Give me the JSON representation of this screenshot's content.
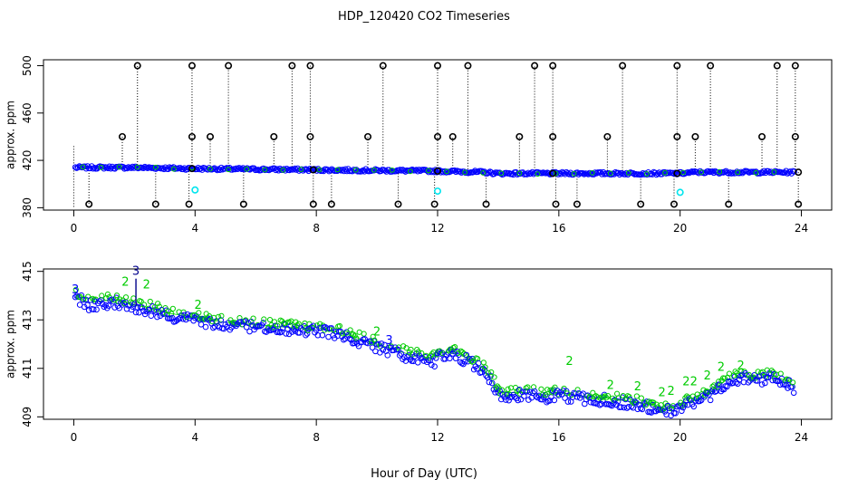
{
  "title": "HDP_120420  CO2 Timeseries",
  "xlabel": "Hour of Day (UTC)",
  "colors": {
    "black": "#000000",
    "blue": "#0000ff",
    "green": "#00cc00",
    "cyan": "#00e5ee",
    "navy": "#00008b"
  },
  "chart_data": [
    {
      "type": "scatter",
      "name": "top-panel",
      "ylabel": "approx. ppm",
      "xlim": [
        -1,
        25
      ],
      "ylim": [
        378,
        505
      ],
      "xticks": [
        0,
        4,
        8,
        12,
        16,
        20,
        24
      ],
      "yticks": [
        380,
        420,
        460,
        500
      ],
      "baseline": [
        [
          0.0,
          414
        ],
        [
          2.0,
          414
        ],
        [
          4.0,
          413
        ],
        [
          8.0,
          412
        ],
        [
          12.0,
          411
        ],
        [
          13.5,
          410
        ],
        [
          14.0,
          409
        ],
        [
          20.0,
          409
        ],
        [
          20.5,
          410
        ],
        [
          23.8,
          410
        ]
      ],
      "outliers_high_500": [
        2.1,
        3.9,
        5.1,
        7.2,
        7.8,
        10.2,
        12.0,
        13.0,
        15.2,
        15.8,
        18.1,
        19.9,
        21.0,
        23.2,
        23.8
      ],
      "outliers_high_440": [
        1.6,
        3.9,
        4.5,
        6.6,
        7.8,
        9.7,
        12.0,
        12.5,
        14.7,
        15.8,
        17.6,
        19.9,
        20.5,
        22.7,
        23.8
      ],
      "outliers_low_383": [
        0.5,
        2.7,
        3.8,
        5.6,
        7.9,
        8.5,
        10.7,
        11.9,
        13.6,
        15.9,
        16.6,
        18.7,
        19.8,
        21.6,
        23.9
      ],
      "cyan_points": [
        [
          4.0,
          395
        ],
        [
          12.0,
          394
        ],
        [
          20.0,
          393
        ]
      ],
      "trace_points": [
        [
          0.1,
          414.0
        ],
        [
          0.5,
          414.0
        ],
        [
          1.0,
          413.8
        ],
        [
          1.5,
          413.6
        ],
        [
          2.0,
          413.9
        ],
        [
          2.5,
          413.5
        ],
        [
          3.0,
          413.3
        ],
        [
          3.5,
          413.2
        ],
        [
          4.0,
          413.1
        ],
        [
          5.0,
          412.9
        ],
        [
          6.0,
          412.8
        ],
        [
          7.0,
          412.7
        ],
        [
          7.8,
          412.6
        ],
        [
          8.0,
          412.7
        ],
        [
          9.0,
          412.4
        ],
        [
          10.0,
          412.0
        ],
        [
          11.0,
          411.6
        ],
        [
          11.9,
          411.4
        ],
        [
          12.0,
          411.6
        ],
        [
          12.5,
          411.7
        ],
        [
          13.0,
          411.4
        ],
        [
          13.5,
          411.0
        ],
        [
          13.8,
          410.5
        ],
        [
          14.0,
          410.0
        ],
        [
          14.5,
          410.0
        ],
        [
          15.0,
          410.0
        ],
        [
          15.5,
          409.9
        ],
        [
          16.0,
          410.0
        ],
        [
          16.5,
          409.9
        ],
        [
          17.0,
          409.8
        ],
        [
          17.5,
          409.8
        ],
        [
          18.0,
          409.7
        ],
        [
          18.5,
          409.6
        ],
        [
          19.0,
          409.5
        ],
        [
          19.5,
          409.3
        ],
        [
          20.0,
          409.5
        ],
        [
          20.5,
          409.7
        ],
        [
          21.0,
          410.0
        ],
        [
          21.5,
          410.5
        ],
        [
          22.0,
          410.7
        ],
        [
          22.5,
          410.6
        ],
        [
          23.0,
          410.7
        ],
        [
          23.5,
          410.5
        ],
        [
          23.8,
          410.2
        ]
      ]
    },
    {
      "type": "line",
      "name": "bottom-panel",
      "ylabel": "approx. ppm",
      "xlim": [
        -1,
        25
      ],
      "ylim": [
        408.9,
        415.1
      ],
      "xticks": [
        0,
        4,
        8,
        12,
        16,
        20,
        24
      ],
      "yticks": [
        409,
        411,
        413,
        415
      ],
      "points": [
        [
          0.1,
          414.0
        ],
        [
          0.5,
          413.7
        ],
        [
          1.0,
          413.8
        ],
        [
          1.5,
          413.8
        ],
        [
          2.0,
          413.6
        ],
        [
          2.5,
          413.5
        ],
        [
          3.0,
          413.3
        ],
        [
          3.5,
          413.2
        ],
        [
          4.0,
          413.1
        ],
        [
          5.0,
          412.9
        ],
        [
          6.0,
          412.8
        ],
        [
          7.0,
          412.7
        ],
        [
          7.8,
          412.6
        ],
        [
          8.0,
          412.7
        ],
        [
          9.0,
          412.4
        ],
        [
          10.0,
          412.0
        ],
        [
          11.0,
          411.6
        ],
        [
          11.9,
          411.4
        ],
        [
          12.0,
          411.6
        ],
        [
          12.5,
          411.7
        ],
        [
          13.0,
          411.4
        ],
        [
          13.5,
          411.0
        ],
        [
          13.8,
          410.5
        ],
        [
          14.0,
          410.0
        ],
        [
          14.5,
          410.0
        ],
        [
          15.0,
          410.0
        ],
        [
          15.5,
          409.9
        ],
        [
          16.0,
          410.0
        ],
        [
          16.5,
          409.9
        ],
        [
          17.0,
          409.8
        ],
        [
          17.5,
          409.8
        ],
        [
          18.0,
          409.7
        ],
        [
          18.5,
          409.6
        ],
        [
          19.0,
          409.5
        ],
        [
          19.5,
          409.3
        ],
        [
          20.0,
          409.5
        ],
        [
          20.5,
          409.7
        ],
        [
          21.0,
          410.0
        ],
        [
          21.5,
          410.5
        ],
        [
          22.0,
          410.7
        ],
        [
          22.5,
          410.6
        ],
        [
          23.0,
          410.7
        ],
        [
          23.5,
          410.5
        ],
        [
          23.8,
          410.2
        ]
      ],
      "spike_x": 2.05,
      "spike_value": 414.7,
      "annotation_labels": [
        {
          "x": 0.05,
          "y": 414.1,
          "text": "3",
          "color": "#0000ff"
        },
        {
          "x": 2.05,
          "y": 414.85,
          "text": "3",
          "color": "#00008b"
        },
        {
          "x": 1.7,
          "y": 414.4,
          "text": "2",
          "color": "#00cc00"
        },
        {
          "x": 2.4,
          "y": 414.3,
          "text": "2",
          "color": "#00cc00"
        },
        {
          "x": 4.1,
          "y": 413.45,
          "text": "2",
          "color": "#00cc00"
        },
        {
          "x": 10.0,
          "y": 412.35,
          "text": "2",
          "color": "#00cc00"
        },
        {
          "x": 10.4,
          "y": 412.0,
          "text": "3",
          "color": "#0000ff"
        },
        {
          "x": 16.35,
          "y": 411.15,
          "text": "2",
          "color": "#00cc00"
        },
        {
          "x": 17.7,
          "y": 410.15,
          "text": "2",
          "color": "#00cc00"
        },
        {
          "x": 18.6,
          "y": 410.1,
          "text": "2",
          "color": "#00cc00"
        },
        {
          "x": 19.4,
          "y": 409.85,
          "text": "2",
          "color": "#00cc00"
        },
        {
          "x": 19.7,
          "y": 409.9,
          "text": "2",
          "color": "#00cc00"
        },
        {
          "x": 20.2,
          "y": 410.3,
          "text": "2",
          "color": "#00cc00"
        },
        {
          "x": 20.45,
          "y": 410.3,
          "text": "2",
          "color": "#00cc00"
        },
        {
          "x": 20.9,
          "y": 410.55,
          "text": "2",
          "color": "#00cc00"
        },
        {
          "x": 21.35,
          "y": 410.9,
          "text": "2",
          "color": "#00cc00"
        },
        {
          "x": 22.0,
          "y": 410.95,
          "text": "2",
          "color": "#00cc00"
        }
      ]
    }
  ]
}
